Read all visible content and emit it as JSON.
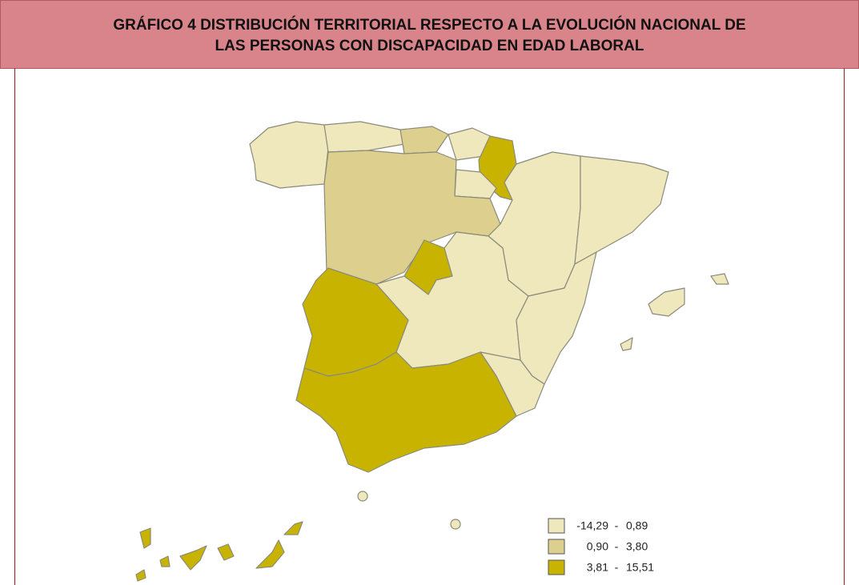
{
  "header": {
    "title_lines": [
      "GRÁFICO  4 DISTRIBUCIÓN TERRITORIAL RESPECTO A LA EVOLUCIÓN NACIONAL DE",
      "LAS PERSONAS CON DISCAPACIDAD EN EDAD LABORAL"
    ]
  },
  "legend": {
    "items": [
      {
        "from": "-14,29",
        "to": "0,89",
        "color": "#efe8bd"
      },
      {
        "from": "0,90",
        "to": "3,80",
        "color": "#ddd08e"
      },
      {
        "from": "3,81",
        "to": "15,51",
        "color": "#c8b400"
      }
    ]
  }
}
